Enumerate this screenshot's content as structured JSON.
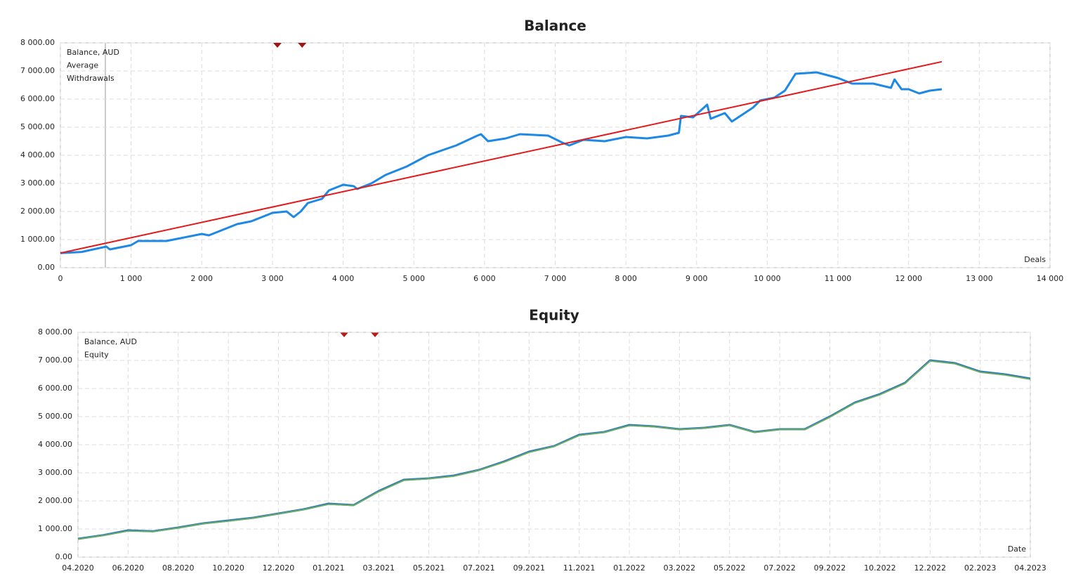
{
  "chart_data": [
    {
      "type": "line",
      "title": "Balance",
      "x_label": "Deals",
      "xlim": [
        0,
        14000
      ],
      "xticks": [
        0,
        {
          "value": 1000,
          "label": "1 000"
        },
        {
          "value": 2000,
          "label": "2 000"
        },
        {
          "value": 3000,
          "label": "3 000"
        },
        {
          "value": 4000,
          "label": "4 000"
        },
        {
          "value": 5000,
          "label": "5 000"
        },
        {
          "value": 6000,
          "label": "6 000"
        },
        {
          "value": 7000,
          "label": "7 000"
        },
        {
          "value": 8000,
          "label": "8 000"
        },
        {
          "value": 9000,
          "label": "9 000"
        },
        {
          "value": 10000,
          "label": "10 000"
        },
        {
          "value": 11000,
          "label": "11 000"
        },
        {
          "value": 12000,
          "label": "12 000"
        },
        {
          "value": 13000,
          "label": "13 000"
        },
        {
          "value": 14000,
          "label": "14 000"
        }
      ],
      "ylim": [
        0,
        8000
      ],
      "yticks": [
        {
          "value": 0,
          "label": "0.00"
        },
        {
          "value": 1000,
          "label": "1 000.00"
        },
        {
          "value": 2000,
          "label": "2 000.00"
        },
        {
          "value": 3000,
          "label": "3 000.00"
        },
        {
          "value": 4000,
          "label": "4 000.00"
        },
        {
          "value": 5000,
          "label": "5 000.00"
        },
        {
          "value": 6000,
          "label": "6 000.00"
        },
        {
          "value": 7000,
          "label": "7 000.00"
        },
        {
          "value": 8000,
          "label": "8 000.00"
        }
      ],
      "grid": true,
      "series": [
        {
          "name": "Balance, AUD",
          "color": "#1e88e5",
          "x": [
            0,
            300,
            650,
            700,
            1000,
            1100,
            1500,
            2000,
            2100,
            2500,
            2700,
            3000,
            3200,
            3300,
            3400,
            3500,
            3700,
            3800,
            4000,
            4150,
            4200,
            4400,
            4600,
            4900,
            5200,
            5600,
            5900,
            5950,
            6050,
            6300,
            6500,
            6900,
            7100,
            7200,
            7400,
            7700,
            8000,
            8300,
            8600,
            8750,
            8780,
            8950,
            9150,
            9200,
            9400,
            9500,
            9800,
            9900,
            10100,
            10250,
            10400,
            10700,
            11000,
            11200,
            11500,
            11750,
            11800,
            11900,
            12000,
            12150,
            12300,
            12470
          ],
          "values": [
            520,
            560,
            750,
            650,
            800,
            950,
            950,
            1200,
            1150,
            1550,
            1650,
            1950,
            2000,
            1800,
            2000,
            2300,
            2450,
            2750,
            2950,
            2900,
            2800,
            3000,
            3300,
            3600,
            4000,
            4350,
            4700,
            4750,
            4500,
            4600,
            4750,
            4700,
            4450,
            4350,
            4550,
            4500,
            4650,
            4600,
            4700,
            4800,
            5400,
            5350,
            5800,
            5300,
            5500,
            5200,
            5700,
            5950,
            6050,
            6300,
            6900,
            6950,
            6750,
            6550,
            6550,
            6400,
            6700,
            6350,
            6350,
            6200,
            6300,
            6350
          ]
        },
        {
          "name": "Average",
          "color": "#e31a1c",
          "x": [
            0,
            12470
          ],
          "values": [
            520,
            7330
          ]
        },
        {
          "name": "Withdrawals",
          "color": "#a31515",
          "x": [
            3070,
            3420
          ]
        }
      ]
    },
    {
      "type": "line",
      "title": "Equity",
      "x_label": "Date",
      "categories": [
        "04.2020",
        null,
        "06.2020",
        null,
        "08.2020",
        null,
        "10.2020",
        null,
        "12.2020",
        null,
        "01.2021",
        null,
        "03.2021",
        null,
        "05.2021",
        null,
        "07.2021",
        null,
        "09.2021",
        null,
        "11.2021",
        null,
        "01.2022",
        null,
        "03.2022",
        null,
        "05.2022",
        null,
        "07.2022",
        null,
        "09.2022",
        null,
        "10.2022",
        null,
        "12.2022",
        null,
        "02.2023",
        null,
        "04.2023"
      ],
      "ylim": [
        0,
        8000
      ],
      "yticks": [
        {
          "value": 0,
          "label": "0.00"
        },
        {
          "value": 1000,
          "label": "1 000.00"
        },
        {
          "value": 2000,
          "label": "2 000.00"
        },
        {
          "value": 3000,
          "label": "3 000.00"
        },
        {
          "value": 4000,
          "label": "4 000.00"
        },
        {
          "value": 5000,
          "label": "5 000.00"
        },
        {
          "value": 6000,
          "label": "6 000.00"
        },
        {
          "value": 7000,
          "label": "7 000.00"
        },
        {
          "value": 8000,
          "label": "8 000.00"
        }
      ],
      "grid": true,
      "series": [
        {
          "name": "Balance, AUD",
          "color": "#1e6fc8",
          "values": [
            650,
            780,
            950,
            920,
            1050,
            1200,
            1300,
            1400,
            1550,
            1700,
            1900,
            1850,
            2350,
            2750,
            2800,
            2900,
            3100,
            3400,
            3750,
            3950,
            4350,
            4450,
            4700,
            4650,
            4550,
            4600,
            4700,
            4450,
            4550,
            4550,
            5000,
            5500,
            5800,
            6200,
            7000,
            6900,
            6600,
            6500,
            6350
          ]
        },
        {
          "name": "Equity",
          "color": "#6aaa64",
          "values": [
            640,
            770,
            930,
            910,
            1040,
            1190,
            1280,
            1390,
            1540,
            1690,
            1880,
            1840,
            2330,
            2730,
            2790,
            2880,
            3090,
            3380,
            3730,
            3940,
            4330,
            4440,
            4680,
            4640,
            4540,
            4590,
            4690,
            4440,
            4540,
            4540,
            4980,
            5480,
            5780,
            6180,
            6980,
            6880,
            6580,
            6480,
            6330
          ]
        }
      ]
    }
  ]
}
